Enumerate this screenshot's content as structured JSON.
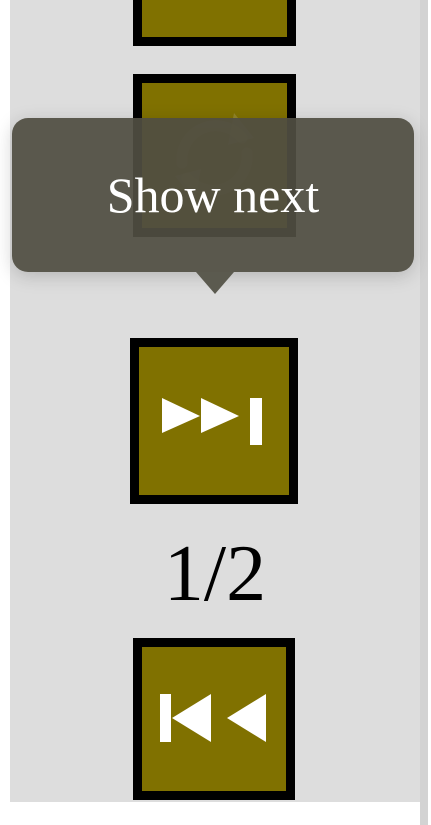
{
  "tooltip": {
    "text": "Show next"
  },
  "pager": {
    "current": "1/2"
  },
  "icons": {
    "top": "unknown-icon",
    "refresh": "refresh-icon",
    "next": "skip-to-last-icon",
    "first": "skip-to-first-icon"
  },
  "colors": {
    "button_fill": "#807100",
    "button_border": "#000000",
    "panel": "#dddddd",
    "tooltip": "#504e42",
    "icon": "#ffffff"
  }
}
